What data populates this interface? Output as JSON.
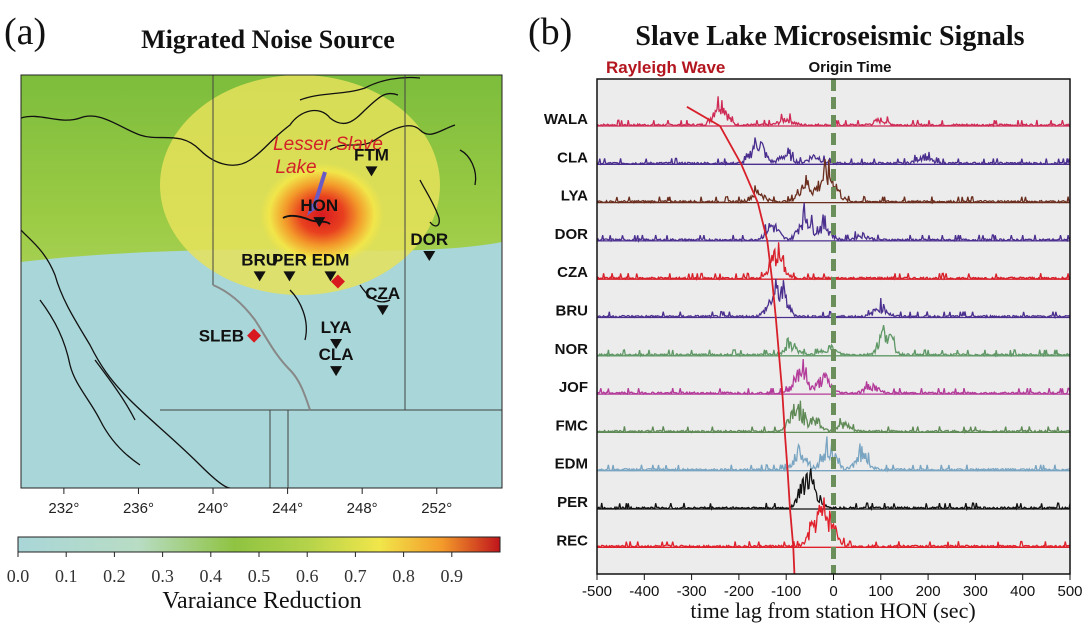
{
  "panel_a": {
    "label": "(a)",
    "title": "Migrated Noise Source",
    "lake_label_line1": "Lesser Slave",
    "lake_label_line2": "Lake",
    "stations": [
      {
        "name": "FTM",
        "lon": 248.5,
        "lat": 57.3
      },
      {
        "name": "HON",
        "lon": 245.7,
        "lat": 55.8
      },
      {
        "name": "DOR",
        "lon": 251.6,
        "lat": 54.8
      },
      {
        "name": "BRU",
        "lon": 242.5,
        "lat": 54.2
      },
      {
        "name": "PER",
        "lon": 244.1,
        "lat": 54.2
      },
      {
        "name": "EDM",
        "lon": 246.3,
        "lat": 54.2
      },
      {
        "name": "CZA",
        "lon": 249.1,
        "lat": 53.2
      },
      {
        "name": "LYA",
        "lon": 246.6,
        "lat": 52.2
      },
      {
        "name": "CLA",
        "lon": 246.6,
        "lat": 51.4
      }
    ],
    "sources": [
      {
        "name": "SLEB",
        "lon": 242.2,
        "lat": 52.3
      },
      {
        "name": "",
        "lon": 246.7,
        "lat": 53.9
      }
    ],
    "lon_ticks": [
      "232°",
      "236°",
      "240°",
      "244°",
      "248°",
      "252°"
    ],
    "colorbar": {
      "ticks": [
        "0.0",
        "0.1",
        "0.2",
        "0.3",
        "0.4",
        "0.5",
        "0.6",
        "0.7",
        "0.8",
        "0.9"
      ],
      "label": "Varaiance Reduction"
    },
    "colors": {
      "ocean": "#a9d6d8",
      "low": "#8fc341",
      "mid": "#f1e64a",
      "high": "#d81920"
    }
  },
  "panel_b": {
    "label": "(b)",
    "title": "Slave Lake Microseismic Signals",
    "rayleigh_label": "Rayleigh Wave",
    "origin_label": "Origin Time",
    "xlabel": "time lag from station HON (sec)",
    "chart_data": {
      "type": "line",
      "xlim": [
        -500,
        500
      ],
      "x_ticks": [
        -500,
        -400,
        -300,
        -200,
        -100,
        0,
        100,
        200,
        300,
        400,
        500
      ],
      "origin_time": 0,
      "series": [
        {
          "name": "WALA",
          "color": "#cf2a55",
          "peaks": [
            [
              -240,
              1.0
            ],
            [
              -100,
              0.25
            ],
            [
              100,
              0.2
            ]
          ]
        },
        {
          "name": "CLA",
          "color": "#4b2f8f",
          "peaks": [
            [
              -160,
              0.9
            ],
            [
              -100,
              0.35
            ],
            [
              -40,
              0.3
            ],
            [
              190,
              0.3
            ]
          ]
        },
        {
          "name": "LYA",
          "color": "#6b2e1e",
          "peaks": [
            [
              -160,
              0.4
            ],
            [
              -60,
              0.8
            ],
            [
              -20,
              0.9
            ],
            [
              0,
              0.6
            ]
          ]
        },
        {
          "name": "DOR",
          "color": "#4b2f8f",
          "peaks": [
            [
              -130,
              0.6
            ],
            [
              -60,
              1.0
            ],
            [
              -20,
              0.6
            ],
            [
              60,
              0.2
            ]
          ]
        },
        {
          "name": "CZA",
          "color": "#d8202a",
          "peaks": [
            [
              -120,
              1.0
            ]
          ]
        },
        {
          "name": "BRU",
          "color": "#4b2f8f",
          "peaks": [
            [
              -110,
              0.9
            ],
            [
              -130,
              0.5
            ],
            [
              100,
              0.4
            ]
          ]
        },
        {
          "name": "NOR",
          "color": "#5f9866",
          "peaks": [
            [
              -90,
              0.4
            ],
            [
              -10,
              0.3
            ],
            [
              110,
              1.0
            ]
          ]
        },
        {
          "name": "JOF",
          "color": "#b33b9a",
          "peaks": [
            [
              -70,
              1.0
            ],
            [
              -20,
              0.6
            ],
            [
              80,
              0.3
            ]
          ]
        },
        {
          "name": "FMC",
          "color": "#5f8a56",
          "peaks": [
            [
              -80,
              1.0
            ],
            [
              -40,
              0.5
            ],
            [
              20,
              0.3
            ]
          ]
        },
        {
          "name": "EDM",
          "color": "#79a5c2",
          "peaks": [
            [
              -70,
              0.8
            ],
            [
              -10,
              0.9
            ],
            [
              60,
              0.7
            ]
          ]
        },
        {
          "name": "PER",
          "color": "#111111",
          "peaks": [
            [
              -60,
              1.0
            ],
            [
              -40,
              0.5
            ]
          ]
        },
        {
          "name": "REC",
          "color": "#e0202a",
          "peaks": [
            [
              -40,
              0.7
            ],
            [
              -20,
              1.0
            ],
            [
              0,
              0.5
            ]
          ]
        }
      ],
      "rayleigh_curve": [
        [
          -310,
          -0.5
        ],
        [
          -240,
          0
        ],
        [
          -195,
          1
        ],
        [
          -160,
          2
        ],
        [
          -140,
          3
        ],
        [
          -130,
          4
        ],
        [
          -122,
          5
        ],
        [
          -115,
          6
        ],
        [
          -108,
          7
        ],
        [
          -103,
          8
        ],
        [
          -97,
          9
        ],
        [
          -92,
          10
        ],
        [
          -85,
          11
        ],
        [
          -80,
          12.5
        ]
      ]
    },
    "colors": {
      "bg": "#ececec",
      "rayleigh": "#d8202a",
      "origin": "#6b8f5a"
    }
  }
}
